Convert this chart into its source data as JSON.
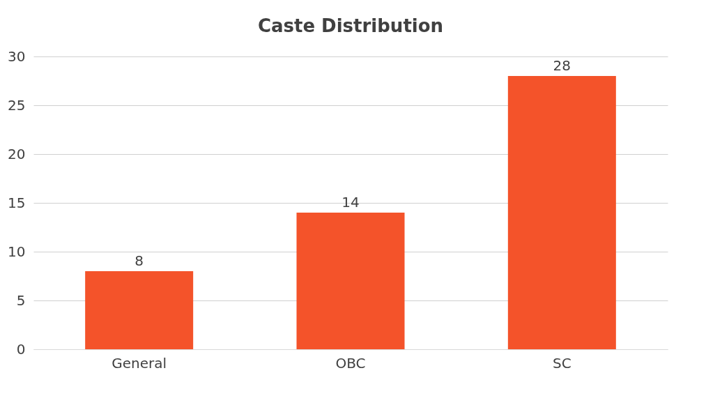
{
  "chart_data": {
    "type": "bar",
    "title": "Caste Distribution",
    "categories": [
      "General",
      "OBC",
      "SC"
    ],
    "values": [
      8,
      14,
      28
    ],
    "color": "#f4532a",
    "ylim": [
      0,
      30
    ],
    "yticks": [
      0,
      5,
      10,
      15,
      20,
      25,
      30
    ],
    "grid": "y",
    "data_labels": true
  }
}
